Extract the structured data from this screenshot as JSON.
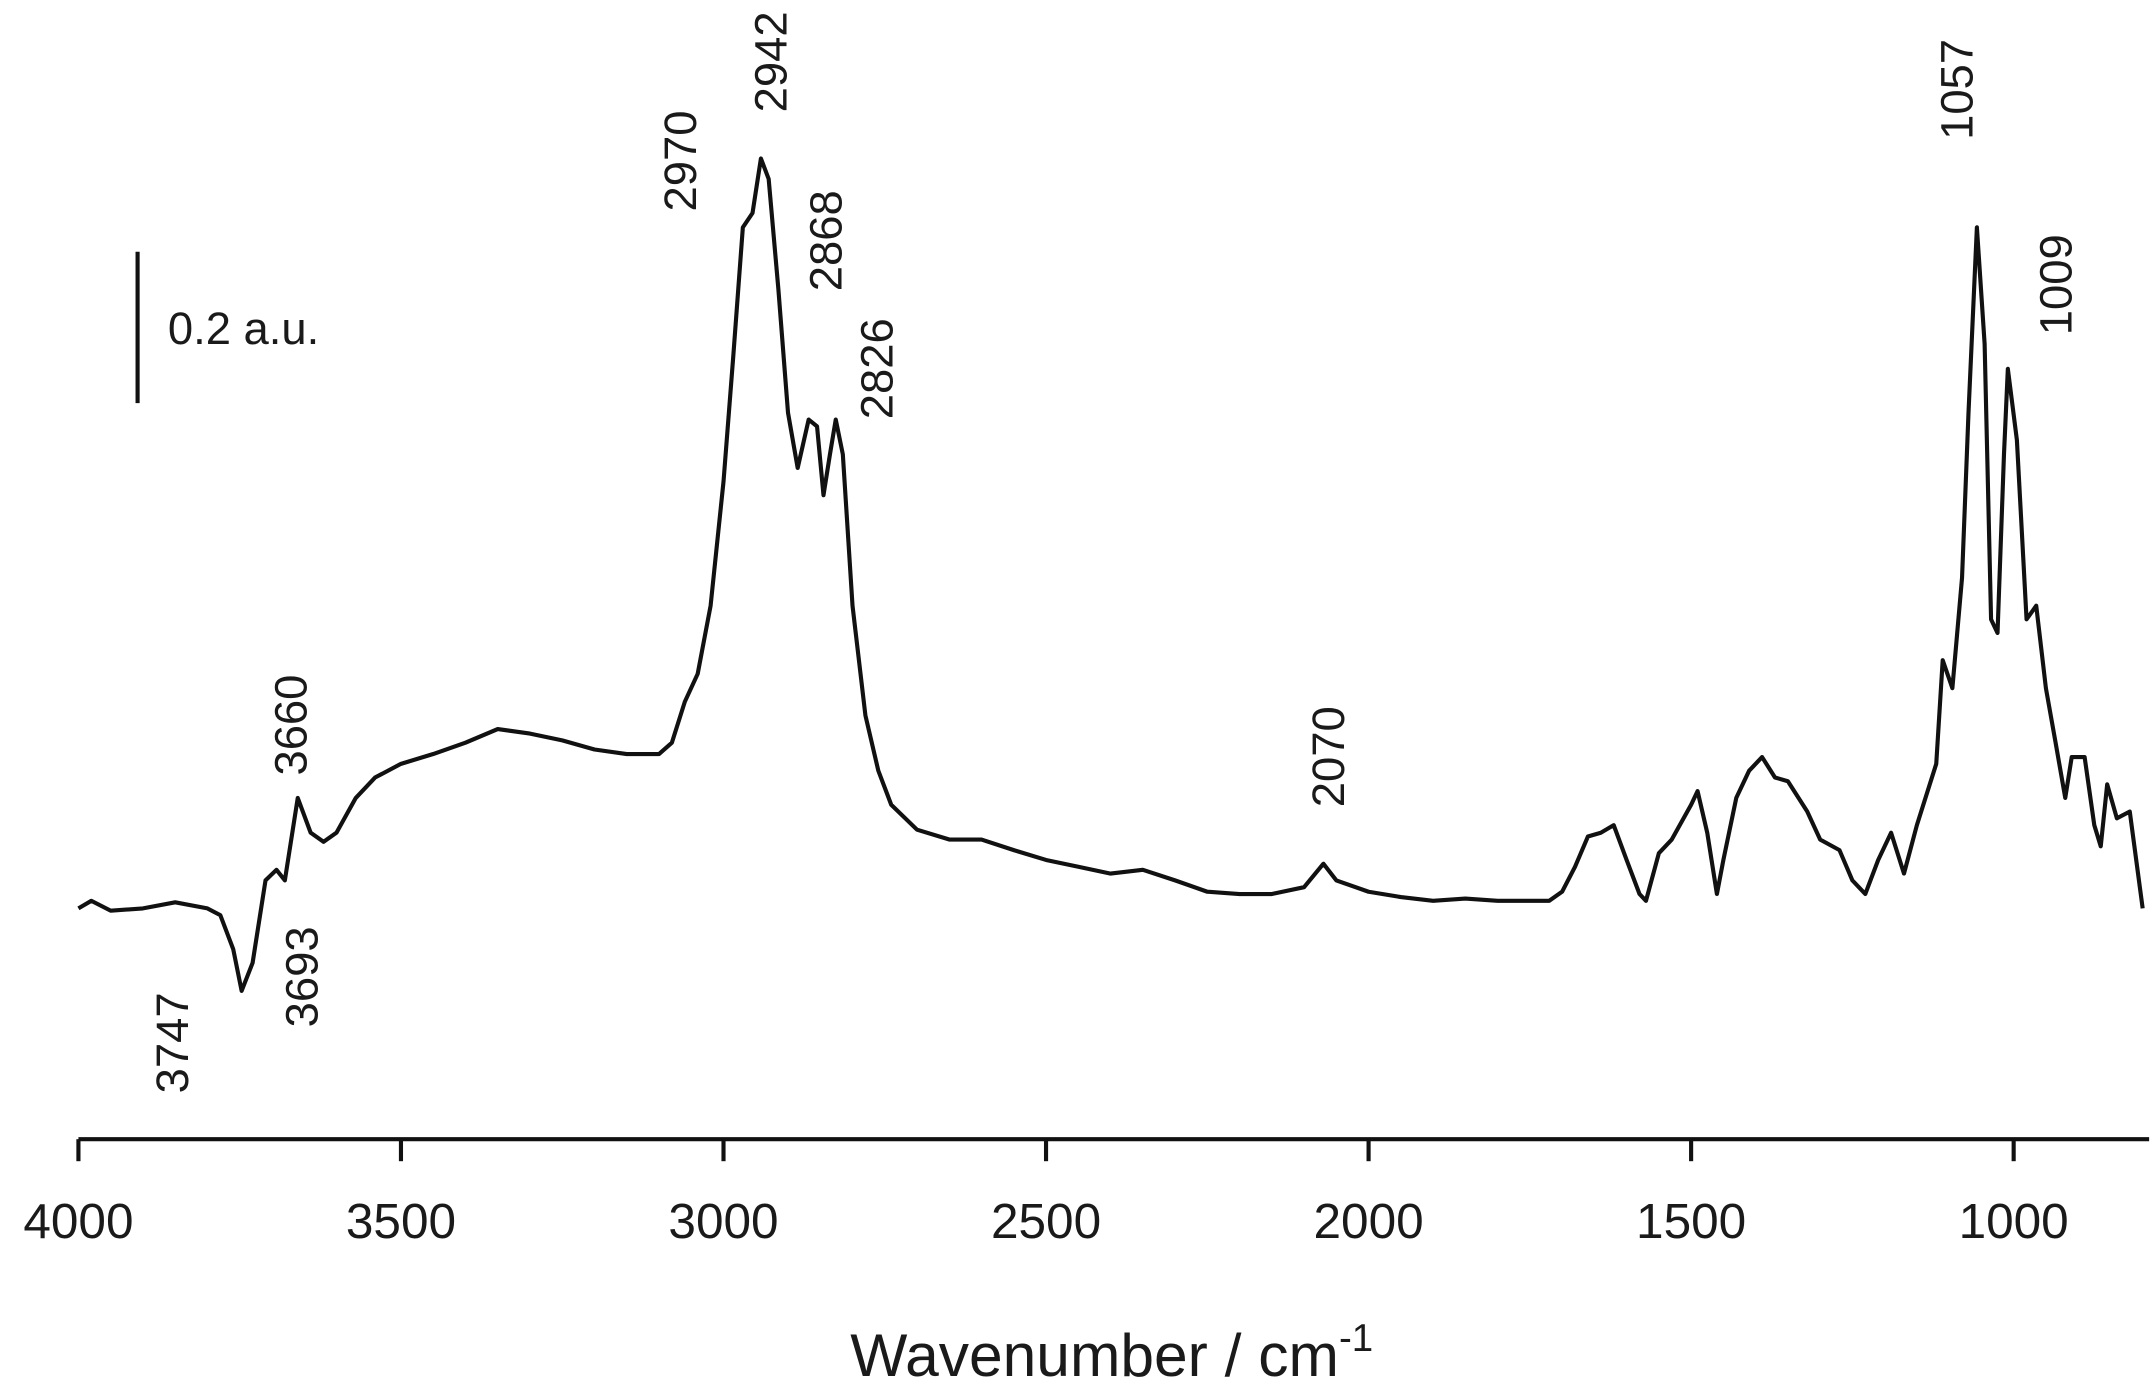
{
  "chart_data": {
    "type": "line",
    "xlabel": "Wavenumber / cm",
    "xlabel_sup": "-1",
    "xlim": [
      4000,
      790
    ],
    "xticks": [
      4000,
      3500,
      3000,
      2500,
      2000,
      1500,
      1000
    ],
    "ylim": [
      0,
      1.4
    ],
    "scale_bar": {
      "value": 0.2,
      "label": "0.2 a.u."
    },
    "peak_labels": [
      "3747",
      "3693",
      "3660",
      "2970",
      "2942",
      "2868",
      "2826",
      "2070",
      "1057",
      "1009"
    ],
    "x": [
      4000,
      3980,
      3950,
      3900,
      3850,
      3800,
      3780,
      3760,
      3747,
      3730,
      3710,
      3693,
      3680,
      3660,
      3640,
      3620,
      3600,
      3570,
      3540,
      3500,
      3450,
      3400,
      3350,
      3300,
      3250,
      3200,
      3150,
      3100,
      3080,
      3060,
      3040,
      3020,
      3000,
      2985,
      2970,
      2955,
      2942,
      2930,
      2915,
      2900,
      2885,
      2868,
      2855,
      2845,
      2835,
      2826,
      2815,
      2800,
      2780,
      2760,
      2740,
      2700,
      2650,
      2600,
      2550,
      2500,
      2450,
      2400,
      2350,
      2300,
      2250,
      2200,
      2150,
      2100,
      2070,
      2050,
      2000,
      1950,
      1900,
      1850,
      1800,
      1750,
      1720,
      1700,
      1680,
      1660,
      1640,
      1620,
      1600,
      1580,
      1570,
      1550,
      1530,
      1500,
      1490,
      1475,
      1460,
      1450,
      1430,
      1410,
      1390,
      1370,
      1350,
      1320,
      1300,
      1270,
      1250,
      1230,
      1210,
      1190,
      1170,
      1150,
      1130,
      1120,
      1110,
      1095,
      1080,
      1070,
      1057,
      1045,
      1035,
      1025,
      1015,
      1009,
      995,
      980,
      965,
      950,
      935,
      920,
      910,
      890,
      875,
      865,
      855,
      840,
      820,
      800
    ],
    "series": [
      {
        "color": "#111111",
        "values": [
          0.305,
          0.315,
          0.302,
          0.305,
          0.313,
          0.305,
          0.296,
          0.251,
          0.196,
          0.233,
          0.342,
          0.356,
          0.342,
          0.451,
          0.405,
          0.393,
          0.405,
          0.451,
          0.478,
          0.496,
          0.509,
          0.524,
          0.542,
          0.536,
          0.527,
          0.515,
          0.509,
          0.509,
          0.524,
          0.578,
          0.615,
          0.705,
          0.869,
          1.033,
          1.205,
          1.224,
          1.296,
          1.269,
          1.124,
          0.96,
          0.887,
          0.951,
          0.942,
          0.851,
          0.905,
          0.951,
          0.905,
          0.705,
          0.56,
          0.487,
          0.442,
          0.409,
          0.396,
          0.396,
          0.382,
          0.369,
          0.36,
          0.351,
          0.356,
          0.342,
          0.327,
          0.324,
          0.324,
          0.333,
          0.364,
          0.342,
          0.327,
          0.32,
          0.315,
          0.318,
          0.315,
          0.315,
          0.315,
          0.327,
          0.36,
          0.4,
          0.405,
          0.415,
          0.369,
          0.324,
          0.315,
          0.378,
          0.396,
          0.442,
          0.46,
          0.405,
          0.324,
          0.369,
          0.451,
          0.487,
          0.505,
          0.478,
          0.473,
          0.433,
          0.396,
          0.382,
          0.342,
          0.324,
          0.369,
          0.405,
          0.351,
          0.415,
          0.469,
          0.496,
          0.633,
          0.596,
          0.742,
          0.96,
          1.205,
          1.051,
          0.687,
          0.669,
          0.905,
          1.018,
          0.924,
          0.687,
          0.705,
          0.596,
          0.524,
          0.451,
          0.505,
          0.505,
          0.415,
          0.387,
          0.469,
          0.424,
          0.433,
          0.305
        ]
      }
    ]
  }
}
